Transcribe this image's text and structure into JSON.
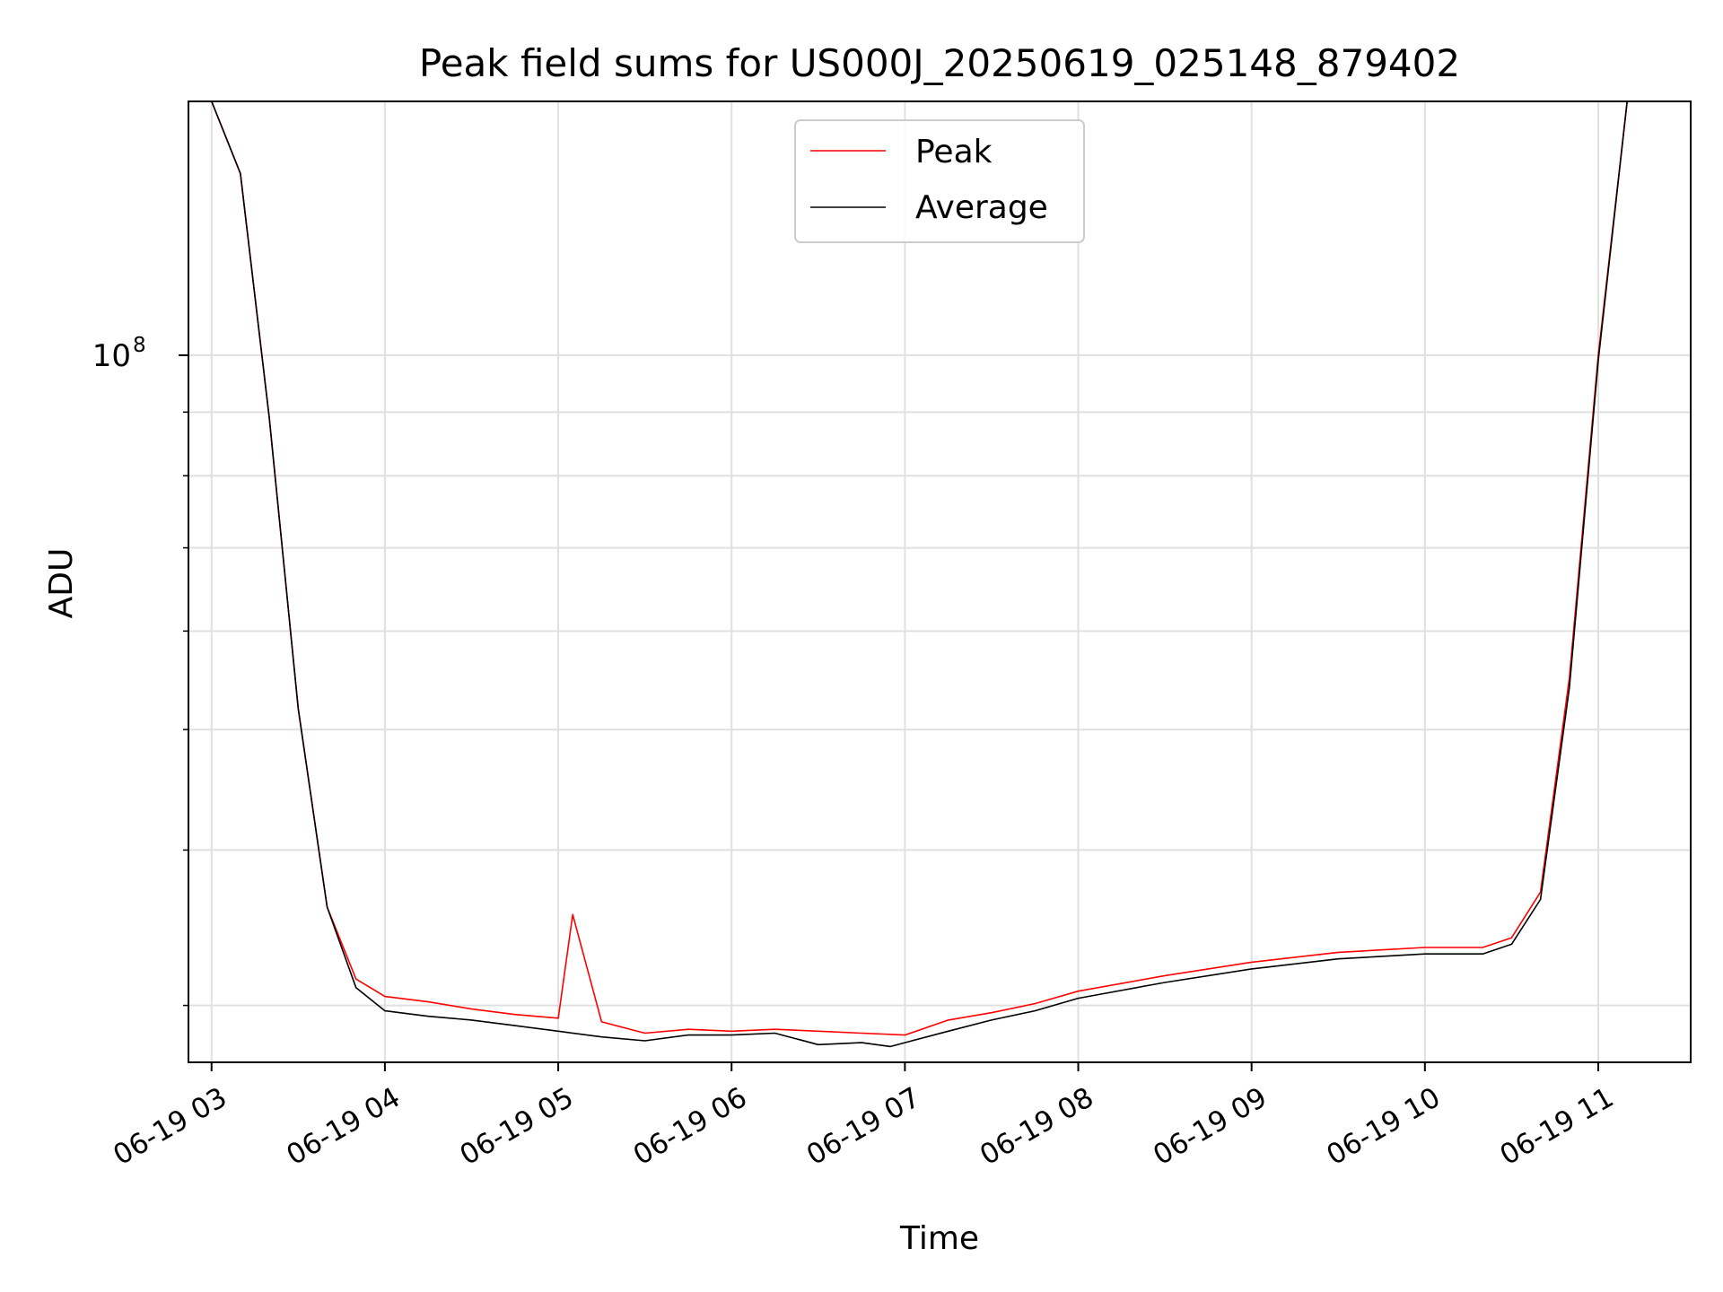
{
  "chart_data": {
    "type": "line",
    "title": "Peak field sums for US000J_20250619_025148_879402",
    "xlabel": "Time",
    "ylabel": "ADU",
    "x_tick_labels": [
      "06-19 03",
      "06-19 04",
      "06-19 05",
      "06-19 06",
      "06-19 07",
      "06-19 08",
      "06-19 09",
      "06-19 10",
      "06-19 11"
    ],
    "x_ticks": [
      "2025-06-19T03:00",
      "2025-06-19T04:00",
      "2025-06-19T05:00",
      "2025-06-19T06:00",
      "2025-06-19T07:00",
      "2025-06-19T08:00",
      "2025-06-19T09:00",
      "2025-06-19T10:00",
      "2025-06-19T11:00"
    ],
    "xlim": [
      "2025-06-19T02:52",
      "2025-06-19T11:32"
    ],
    "yscale": "log",
    "ylim": [
      27000000,
      160000000
    ],
    "y_major_tick_label_base": "10",
    "y_major_tick_label_exp": "8",
    "y_major_tick": 100000000,
    "y_minor_ticks": [
      30000000,
      40000000,
      50000000,
      60000000,
      70000000,
      80000000,
      90000000,
      200000000
    ],
    "grid": true,
    "legend_position": "top-center",
    "legend": [
      {
        "name": "Peak",
        "color": "#ff0000"
      },
      {
        "name": "Average",
        "color": "#000000"
      }
    ],
    "series": [
      {
        "name": "Peak",
        "color": "#ff0000",
        "x": [
          "2025-06-19T03:00",
          "2025-06-19T03:10",
          "2025-06-19T03:20",
          "2025-06-19T03:30",
          "2025-06-19T03:40",
          "2025-06-19T03:50",
          "2025-06-19T04:00",
          "2025-06-19T04:15",
          "2025-06-19T04:30",
          "2025-06-19T04:45",
          "2025-06-19T05:00",
          "2025-06-19T05:05",
          "2025-06-19T05:15",
          "2025-06-19T05:30",
          "2025-06-19T05:45",
          "2025-06-19T06:00",
          "2025-06-19T06:15",
          "2025-06-19T06:30",
          "2025-06-19T06:45",
          "2025-06-19T07:00",
          "2025-06-19T07:15",
          "2025-06-19T07:30",
          "2025-06-19T07:45",
          "2025-06-19T08:00",
          "2025-06-19T08:30",
          "2025-06-19T09:00",
          "2025-06-19T09:30",
          "2025-06-19T10:00",
          "2025-06-19T10:20",
          "2025-06-19T10:30",
          "2025-06-19T10:40",
          "2025-06-19T10:50",
          "2025-06-19T11:00",
          "2025-06-19T11:10"
        ],
        "y": [
          160000000,
          140000000,
          89000000,
          52000000,
          36000000,
          31500000,
          30500000,
          30200000,
          29800000,
          29500000,
          29300000,
          35500000,
          29100000,
          28500000,
          28700000,
          28600000,
          28700000,
          28600000,
          28500000,
          28400000,
          29200000,
          29600000,
          30100000,
          30800000,
          31700000,
          32500000,
          33100000,
          33400000,
          33400000,
          34000000,
          37000000,
          55000000,
          100000000,
          160000000
        ]
      },
      {
        "name": "Average",
        "color": "#000000",
        "x": [
          "2025-06-19T03:00",
          "2025-06-19T03:10",
          "2025-06-19T03:20",
          "2025-06-19T03:30",
          "2025-06-19T03:40",
          "2025-06-19T03:50",
          "2025-06-19T04:00",
          "2025-06-19T04:15",
          "2025-06-19T04:30",
          "2025-06-19T04:45",
          "2025-06-19T05:00",
          "2025-06-19T05:15",
          "2025-06-19T05:30",
          "2025-06-19T05:45",
          "2025-06-19T06:00",
          "2025-06-19T06:15",
          "2025-06-19T06:30",
          "2025-06-19T06:45",
          "2025-06-19T06:55",
          "2025-06-19T07:15",
          "2025-06-19T07:30",
          "2025-06-19T07:45",
          "2025-06-19T08:00",
          "2025-06-19T08:30",
          "2025-06-19T09:00",
          "2025-06-19T09:30",
          "2025-06-19T10:00",
          "2025-06-19T10:20",
          "2025-06-19T10:30",
          "2025-06-19T10:40",
          "2025-06-19T10:50",
          "2025-06-19T11:00",
          "2025-06-19T11:10"
        ],
        "y": [
          160000000,
          140000000,
          89000000,
          52000000,
          36000000,
          31000000,
          29700000,
          29400000,
          29200000,
          28900000,
          28600000,
          28300000,
          28100000,
          28400000,
          28400000,
          28500000,
          27900000,
          28000000,
          27800000,
          28600000,
          29200000,
          29700000,
          30400000,
          31300000,
          32100000,
          32700000,
          33000000,
          33000000,
          33600000,
          36500000,
          54000000,
          99000000,
          160000000
        ]
      }
    ]
  }
}
